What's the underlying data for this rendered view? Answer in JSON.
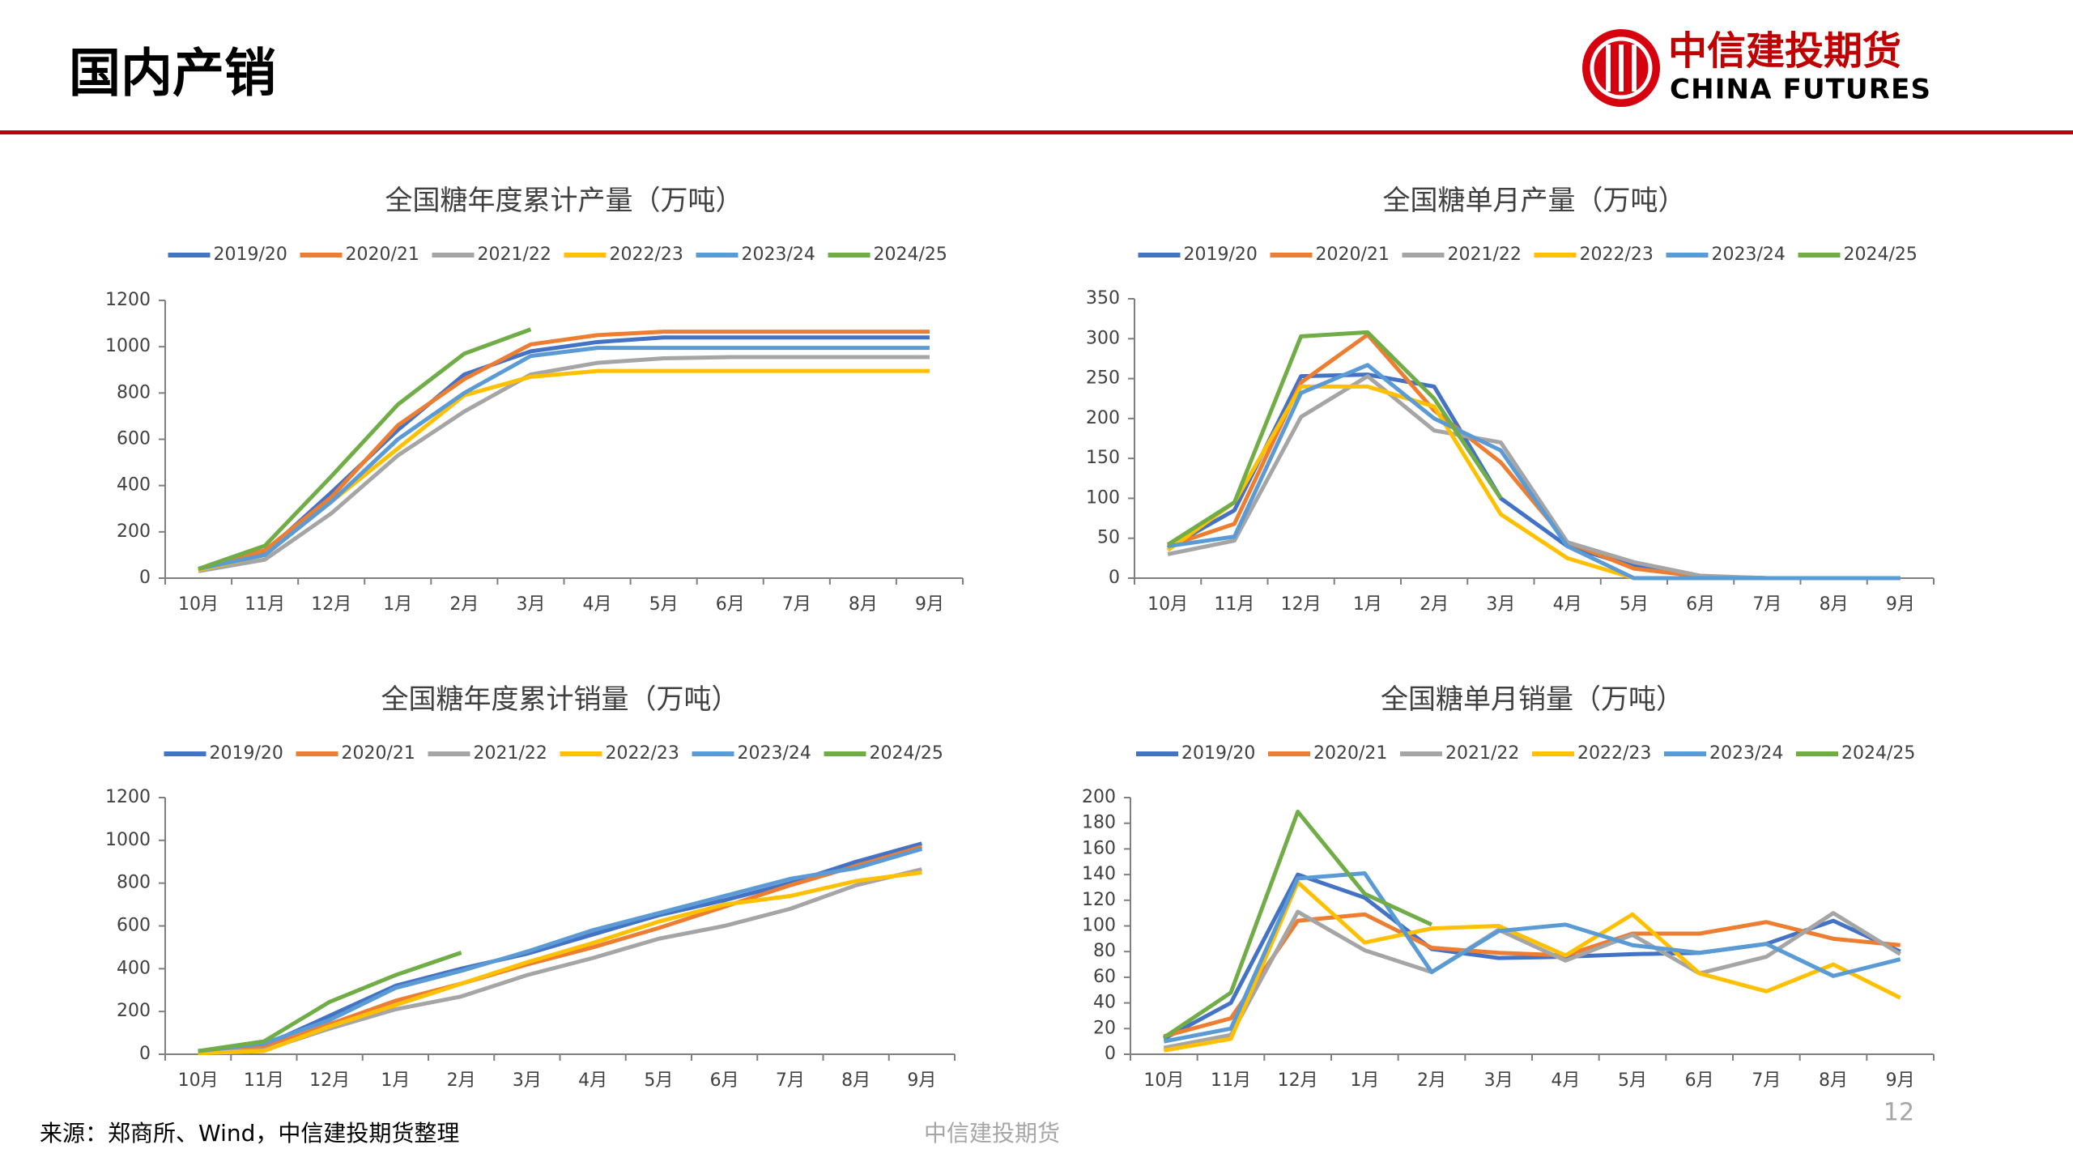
{
  "header": {
    "title": "国内产销",
    "logo_cn": "中信建投期货",
    "logo_en": "CHINA FUTURES"
  },
  "source": "来源：郑商所、Wind，中信建投期货整理",
  "footer": "中信建投期货",
  "page_number": "12",
  "chart_data": [
    {
      "type": "line",
      "title": "全国糖年度累计产量（万吨）",
      "categories": [
        "10月",
        "11月",
        "12月",
        "1月",
        "2月",
        "3月",
        "4月",
        "5月",
        "6月",
        "7月",
        "8月",
        "9月"
      ],
      "ylim": [
        0,
        1200
      ],
      "yticks": [
        0,
        200,
        400,
        600,
        800,
        1000,
        1200
      ],
      "series": [
        {
          "name": "2019/20",
          "color": "#4472c4",
          "values": [
            35,
            110,
            370,
            640,
            880,
            980,
            1020,
            1040,
            1040,
            1040,
            1040,
            1040
          ]
        },
        {
          "name": "2020/21",
          "color": "#ed7d31",
          "values": [
            40,
            120,
            350,
            660,
            860,
            1010,
            1050,
            1065,
            1065,
            1065,
            1065,
            1065
          ]
        },
        {
          "name": "2021/22",
          "color": "#a5a5a5",
          "values": [
            30,
            80,
            280,
            530,
            720,
            880,
            930,
            950,
            955,
            955,
            955,
            955
          ]
        },
        {
          "name": "2022/23",
          "color": "#ffc000",
          "values": [
            35,
            100,
            330,
            560,
            790,
            870,
            895,
            895,
            895,
            895,
            895,
            895
          ]
        },
        {
          "name": "2023/24",
          "color": "#5b9bd5",
          "values": [
            40,
            100,
            330,
            600,
            800,
            960,
            995,
            995,
            995,
            995,
            995,
            995
          ]
        },
        {
          "name": "2024/25",
          "color": "#70ad47",
          "values": [
            40,
            140,
            440,
            750,
            970,
            1075,
            null,
            null,
            null,
            null,
            null,
            null
          ]
        }
      ]
    },
    {
      "type": "line",
      "title": "全国糖单月产量（万吨）",
      "categories": [
        "10月",
        "11月",
        "12月",
        "1月",
        "2月",
        "3月",
        "4月",
        "5月",
        "6月",
        "7月",
        "8月",
        "9月"
      ],
      "ylim": [
        0,
        350
      ],
      "yticks": [
        0,
        50,
        100,
        150,
        200,
        250,
        300,
        350
      ],
      "series": [
        {
          "name": "2019/20",
          "color": "#4472c4",
          "values": [
            38,
            85,
            253,
            255,
            240,
            100,
            40,
            15,
            2,
            0,
            0,
            0
          ]
        },
        {
          "name": "2020/21",
          "color": "#ed7d31",
          "values": [
            40,
            68,
            245,
            305,
            210,
            145,
            45,
            12,
            2,
            0,
            0,
            0
          ]
        },
        {
          "name": "2021/22",
          "color": "#a5a5a5",
          "values": [
            30,
            47,
            202,
            253,
            185,
            170,
            45,
            20,
            3,
            0,
            0,
            0
          ]
        },
        {
          "name": "2022/23",
          "color": "#ffc000",
          "values": [
            35,
            95,
            240,
            240,
            215,
            80,
            25,
            0,
            0,
            0,
            0,
            0
          ]
        },
        {
          "name": "2023/24",
          "color": "#5b9bd5",
          "values": [
            40,
            52,
            232,
            267,
            200,
            160,
            40,
            0,
            0,
            0,
            0,
            0
          ]
        },
        {
          "name": "2024/25",
          "color": "#70ad47",
          "values": [
            42,
            95,
            303,
            308,
            225,
            100,
            null,
            null,
            null,
            null,
            null,
            null
          ]
        }
      ]
    },
    {
      "type": "line",
      "title": "全国糖年度累计销量（万吨）",
      "categories": [
        "10月",
        "11月",
        "12月",
        "1月",
        "2月",
        "3月",
        "4月",
        "5月",
        "6月",
        "7月",
        "8月",
        "9月"
      ],
      "ylim": [
        0,
        1200
      ],
      "yticks": [
        0,
        200,
        400,
        600,
        800,
        1000,
        1200
      ],
      "series": [
        {
          "name": "2019/20",
          "color": "#4472c4",
          "values": [
            15,
            40,
            180,
            320,
            400,
            470,
            560,
            650,
            720,
            800,
            900,
            985
          ]
        },
        {
          "name": "2020/21",
          "color": "#ed7d31",
          "values": [
            15,
            30,
            140,
            250,
            330,
            420,
            500,
            590,
            690,
            790,
            880,
            970
          ]
        },
        {
          "name": "2021/22",
          "color": "#a5a5a5",
          "values": [
            10,
            20,
            120,
            210,
            270,
            370,
            450,
            540,
            600,
            680,
            790,
            865
          ]
        },
        {
          "name": "2022/23",
          "color": "#ffc000",
          "values": [
            5,
            15,
            130,
            230,
            330,
            430,
            520,
            620,
            700,
            740,
            810,
            850
          ]
        },
        {
          "name": "2023/24",
          "color": "#5b9bd5",
          "values": [
            15,
            50,
            160,
            310,
            390,
            480,
            580,
            660,
            740,
            820,
            870,
            960
          ]
        },
        {
          "name": "2024/25",
          "color": "#70ad47",
          "values": [
            15,
            60,
            245,
            370,
            475,
            null,
            null,
            null,
            null,
            null,
            null,
            null
          ]
        }
      ]
    },
    {
      "type": "line",
      "title": "全国糖单月销量（万吨）",
      "categories": [
        "10月",
        "11月",
        "12月",
        "1月",
        "2月",
        "3月",
        "4月",
        "5月",
        "6月",
        "7月",
        "8月",
        "9月"
      ],
      "ylim": [
        0,
        200
      ],
      "yticks": [
        0,
        20,
        40,
        60,
        80,
        100,
        120,
        140,
        160,
        180,
        200
      ],
      "series": [
        {
          "name": "2019/20",
          "color": "#4472c4",
          "values": [
            12,
            40,
            140,
            122,
            82,
            75,
            76,
            78,
            79,
            86,
            104,
            80
          ]
        },
        {
          "name": "2020/21",
          "color": "#ed7d31",
          "values": [
            14,
            28,
            104,
            109,
            83,
            79,
            77,
            94,
            94,
            103,
            90,
            85
          ]
        },
        {
          "name": "2021/22",
          "color": "#a5a5a5",
          "values": [
            5,
            15,
            111,
            81,
            64,
            97,
            73,
            93,
            63,
            76,
            110,
            78
          ]
        },
        {
          "name": "2022/23",
          "color": "#ffc000",
          "values": [
            3,
            12,
            134,
            87,
            98,
            100,
            77,
            109,
            63,
            49,
            70,
            44
          ]
        },
        {
          "name": "2023/24",
          "color": "#5b9bd5",
          "values": [
            10,
            20,
            137,
            141,
            64,
            96,
            101,
            85,
            79,
            86,
            61,
            74
          ]
        },
        {
          "name": "2024/25",
          "color": "#70ad47",
          "values": [
            13,
            48,
            189,
            125,
            101,
            null,
            null,
            null,
            null,
            null,
            null,
            null
          ]
        }
      ]
    }
  ]
}
